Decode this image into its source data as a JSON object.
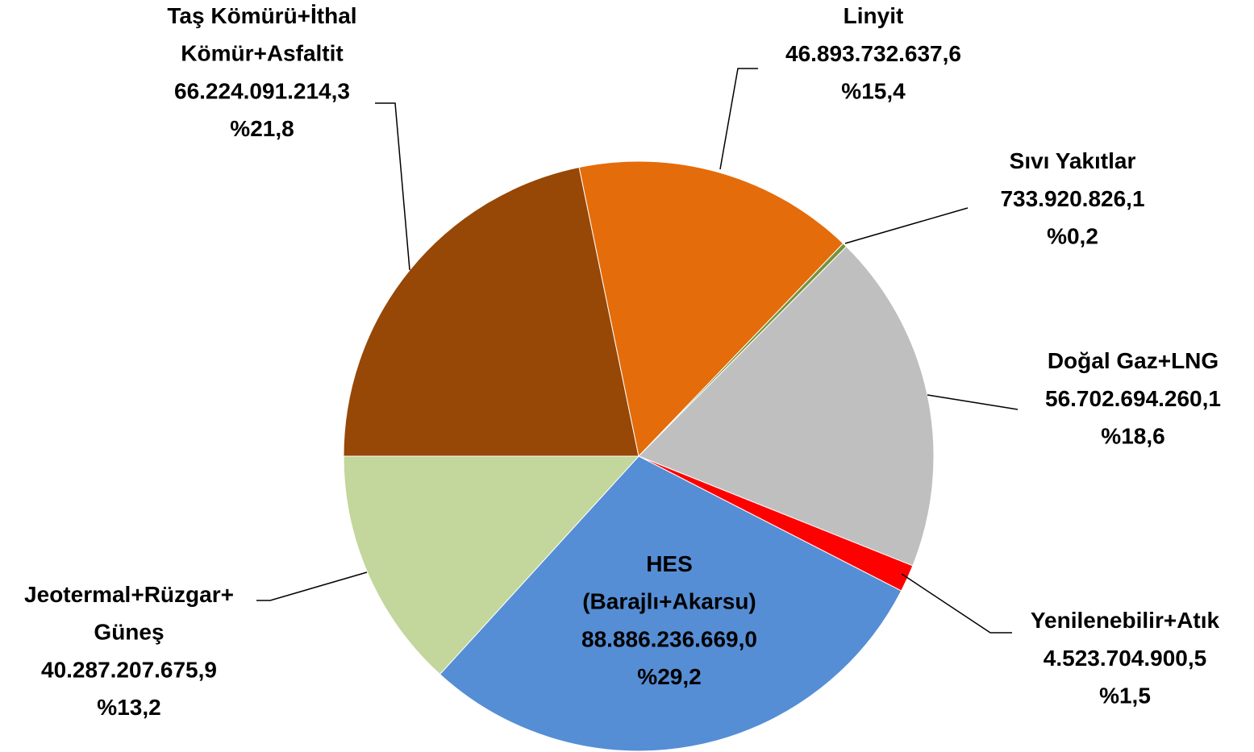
{
  "chart_data": {
    "type": "pie",
    "categories": [
      "Taş Kömürü+İthal Kömür+Asfaltit",
      "Linyit",
      "Sıvı Yakıtlar",
      "Doğal Gaz+LNG",
      "Yenilenebilir+Atık",
      "HES (Barajlı+Akarsu)",
      "Jeotermal+Rüzgar+Güneş"
    ],
    "values": [
      66224091214.3,
      46893732637.6,
      733920826.1,
      56702694260.1,
      4523704900.5,
      88886236669.0,
      40287207675.9
    ],
    "value_labels": [
      "66.224.091.214,3",
      "46.893.732.637,6",
      "733.920.826,1",
      "56.702.694.260,1",
      "4.523.704.900,5",
      "88.886.236.669,0",
      "40.287.207.675,9"
    ],
    "percents": [
      21.8,
      15.4,
      0.2,
      18.6,
      1.5,
      29.2,
      13.2
    ],
    "percent_labels": [
      "%21,8",
      "%15,4",
      "%0,2",
      "%18,6",
      "%1,5",
      "%29,2",
      "%13,2"
    ],
    "colors": [
      "#974706",
      "#e46c0a",
      "#77933c",
      "#bfbfbf",
      "#ff0000",
      "#558ed5",
      "#c3d69b"
    ]
  }
}
